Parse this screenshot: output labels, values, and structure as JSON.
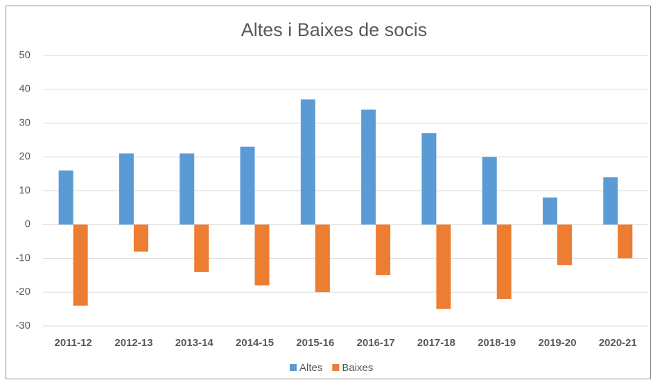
{
  "chart_data": {
    "type": "bar",
    "title": "Altes i Baixes de socis",
    "categories": [
      "2011-12",
      "2012-13",
      "2013-14",
      "2014-15",
      "2015-16",
      "2016-17",
      "2017-18",
      "2018-19",
      "2019-20",
      "2020-21"
    ],
    "series": [
      {
        "name": "Altes",
        "color": "#5b9bd5",
        "values": [
          16,
          21,
          21,
          23,
          37,
          34,
          27,
          20,
          8,
          14
        ]
      },
      {
        "name": "Baixes",
        "color": "#ed7d31",
        "values": [
          -24,
          -8,
          -14,
          -18,
          -20,
          -15,
          -25,
          -22,
          -12,
          -10
        ]
      }
    ],
    "ylim": [
      -30,
      50
    ],
    "yticks": [
      -30,
      -20,
      -10,
      0,
      10,
      20,
      30,
      40,
      50
    ],
    "grid": true,
    "legend": "bottom"
  }
}
